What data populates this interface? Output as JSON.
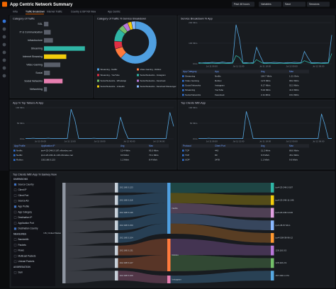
{
  "header": {
    "title": "App Centric Network Summary",
    "controls": [
      "Past 48 hours",
      "Variables",
      "Save",
      "Sessions"
    ]
  },
  "tabs": [
    "Infra",
    "Traffic Breakdown",
    "Internet Traffic",
    "Country & ISP Kill View",
    "App Centric"
  ],
  "active_tab": 1,
  "panels": [
    {
      "title": "Category of Traffic",
      "type": "hbar",
      "categories": [
        "SSL",
        "IT & Communication",
        "Infrastructure",
        "Streaming",
        "Internet Browsing",
        "Video Gaming",
        "Social",
        "Social Networks",
        "Networking"
      ],
      "values": [
        6,
        9,
        12,
        55,
        30,
        22,
        8,
        25,
        4
      ],
      "colors": [
        "#5a5f6a",
        "#5a5f6a",
        "#5a5f6a",
        "#2fb5a5",
        "#f2cc0c",
        "#5a5f6a",
        "#5a5f6a",
        "#e77fb0",
        "#5a5f6a"
      ]
    },
    {
      "title": "Category of Traffic % Service Breakdown",
      "type": "pie",
      "categories": [
        "Streaming - Netflix",
        "Video Gaming - Roblox",
        "Streaming - YouTube",
        "Social Networks - Instagram",
        "Social Networks - WhatsApp",
        "Social Networks - Facebook",
        "Social Networks - LinkedIn",
        "Social Networks - Facebook Messenger"
      ],
      "values": [
        62,
        8,
        6,
        10,
        4,
        4,
        3,
        3
      ],
      "colors": [
        "#4f9fe0",
        "#ff7a3d",
        "#e02f44",
        "#2fb5a5",
        "#73bf69",
        "#b877d9",
        "#f2cc0c",
        "#8ab8ff"
      ]
    },
    {
      "title": "Service Breakdown % App",
      "type": "timeseries",
      "ylim": [
        0,
        200
      ],
      "yticks": [
        {
          "value": 0,
          "label": "0 b/s"
        },
        {
          "value": 100,
          "label": "100 Mb/s"
        },
        {
          "value": 200,
          "label": "200 Mb/s"
        }
      ],
      "xlabels": [
        "Jul 11 06:00",
        "Jul 11 12:00",
        "Jul 11 18:00",
        "Jul 12 00:00",
        "Jul 12 06:00"
      ],
      "series": [
        {
          "color": "#56a7e0",
          "values": [
            5,
            4,
            6,
            5,
            7,
            6,
            5,
            8,
            6,
            5,
            7,
            190,
            120,
            6,
            5,
            4,
            6,
            80,
            40,
            5,
            6,
            5,
            7,
            6,
            5,
            4,
            6,
            5,
            7,
            6,
            5,
            60,
            30,
            5,
            6,
            5,
            4,
            6,
            5,
            140
          ]
        },
        {
          "color": "#2fb5a5",
          "values": [
            2,
            3,
            2,
            2,
            3,
            2,
            2,
            3,
            2,
            2,
            3,
            40,
            30,
            2,
            2,
            3,
            2,
            20,
            10,
            2,
            2,
            3,
            2,
            2,
            3,
            2,
            2,
            3,
            2,
            2,
            3,
            15,
            8,
            2,
            2,
            3,
            2,
            2,
            3,
            50
          ]
        }
      ],
      "table": {
        "columns": [
          "App Category",
          "App",
          "Avg",
          "Max"
        ],
        "rows": [
          [
            "Streaming",
            "Netflix",
            "164.7 Mb/s",
            "1.21 Gb/s"
          ],
          [
            "Video Gaming",
            "Roblox",
            "12.5 Mb/s",
            "98.2 Mb/s"
          ],
          [
            "Social Networks",
            "Instagram",
            "8.17 Mb/s",
            "52.3 Mb/s"
          ],
          [
            "Streaming",
            "YouTube",
            "5.02 Mb/s",
            "41.0 Mb/s"
          ],
          [
            "Social Networks",
            "Facebook",
            "2.11 Mb/s",
            "18.4 Mb/s"
          ]
        ]
      }
    },
    {
      "title": "App % Top Talkers At App",
      "type": "timeseries",
      "ylim": [
        0,
        100
      ],
      "yticks": [
        {
          "value": 0,
          "label": "0 b/s"
        },
        {
          "value": 50,
          "label": "50 Mb/s"
        },
        {
          "value": 100,
          "label": "100 Mb/s"
        }
      ],
      "xlabels": [
        "Jul 11 06:00",
        "Jul 11 12:00",
        "Jul 11 18:00",
        "Jul 12 00:00",
        "Jul 12 06:00"
      ],
      "series": [
        {
          "color": "#56a7e0",
          "values": [
            1,
            1,
            2,
            1,
            1,
            1,
            2,
            1,
            1,
            1,
            1,
            1,
            95,
            60,
            1,
            1,
            1,
            1,
            2,
            1,
            1,
            1,
            1,
            1,
            1,
            70,
            30,
            1,
            1,
            1,
            1,
            1,
            1,
            1,
            1,
            1,
            1,
            1,
            85,
            40
          ]
        }
      ],
      "table": {
        "columns": [
          "App Profile",
          "Application IP",
          "Avg",
          "Max"
        ],
        "rows": [
          [
            "Netflix",
            "ipv4-23-246-2-187.nflxvideo.net",
            "12.4 Mb/s",
            "95.3 Mb/s"
          ],
          [
            "Netflix",
            "ipv4-23-246-11-146.nflxvideo.net",
            "9.8 Mb/s",
            "70.1 Mb/s"
          ],
          [
            "Roblox",
            "192.168.5.123",
            "1.2 Mb/s",
            "8.4 Mb/s"
          ]
        ]
      }
    },
    {
      "title": "Top Clients With App",
      "type": "timeseries",
      "ylim": [
        0,
        100
      ],
      "yticks": [
        {
          "value": 0,
          "label": "0 b/s"
        },
        {
          "value": 50,
          "label": "50 Mb/s"
        },
        {
          "value": 100,
          "label": "100 Mb/s"
        }
      ],
      "xlabels": [
        "Jul 11 06:00",
        "Jul 11 12:00",
        "Jul 11 18:00",
        "Jul 12 00:00",
        "Jul 12 06:00"
      ],
      "series": [
        {
          "color": "#56a7e0",
          "values": [
            1,
            1,
            1,
            2,
            1,
            1,
            1,
            1,
            1,
            1,
            1,
            1,
            1,
            1,
            88,
            50,
            1,
            1,
            1,
            1,
            1,
            1,
            1,
            1,
            1,
            1,
            1,
            1,
            1,
            1,
            1,
            1,
            1,
            1,
            1,
            1,
            80,
            45,
            1,
            1
          ]
        }
      ],
      "table": {
        "columns": [
          "Protocol",
          "Client Port",
          "Avg",
          "Max"
        ],
        "rows": [
          [
            "TCP",
            "443",
            "11.2 Mb/s",
            "88.0 Mb/s"
          ],
          [
            "TCP",
            "80",
            "6.5 Mb/s",
            "45.2 Mb/s"
          ],
          [
            "UDP",
            "3478",
            "1.1 Mb/s",
            "9.6 Mb/s"
          ]
        ]
      }
    },
    {
      "title": "Top Clients With App % Sankey Now",
      "type": "sankey",
      "sidebar": [
        {
          "heading": "DIMENSIONS",
          "items": [
            "Source Country",
            "Client IP",
            "Client Port",
            "Source AS",
            "App Profile",
            "App Category",
            "Destination IP",
            "Application Port",
            "Destination Country"
          ]
        },
        {
          "heading": "MEASURES",
          "items": [
            "Bandwidth",
            "Packets",
            "Flows",
            "Multicast Packets",
            "Unicast Packets"
          ]
        },
        {
          "heading": "AGGREGATION",
          "items": [
            "Sum"
          ]
        }
      ],
      "nodes": [
        [
          "US | United States"
        ],
        [
          "192.168.5.123",
          "192.168.5.118",
          "192.168.5.146",
          "192.168.5.150",
          "192.168.5.104",
          "192.168.5.131",
          "192.168.5.127",
          "192.168.5.109"
        ],
        [
          "Netflix",
          "Roblox",
          "Instagram"
        ],
        [
          "ipv4-23-246-2-187",
          "ipv4-23-246-11-146",
          "ipv4-23-246-3-140",
          "ipv4-45-57-90-1",
          "ipv4-198-38-96-12",
          "128.116.0.5",
          "128.116.2.9",
          "157.240.1.174"
        ]
      ]
    }
  ]
}
